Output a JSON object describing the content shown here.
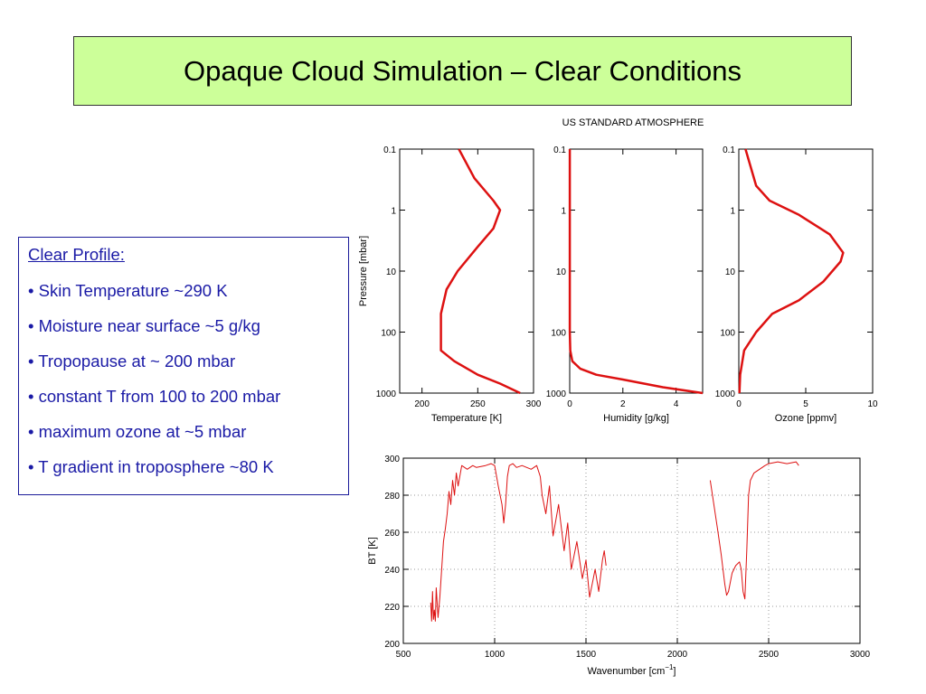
{
  "slide": {
    "title": "Opaque Cloud Simulation – Clear Conditions",
    "profile": {
      "heading": "Clear Profile:",
      "bullets": [
        "• Skin Temperature ~290 K",
        "• Moisture near surface ~5 g/kg",
        "• Tropopause at ~ 200 mbar",
        "• constant T from 100 to 200 mbar",
        "• maximum ozone at ~5 mbar",
        "• T gradient in troposphere ~80 K"
      ]
    }
  },
  "colors": {
    "title_bg": "#ccff99",
    "text_blue": "#1a1aa6",
    "line_red": "#dd1111"
  },
  "chart_data": [
    {
      "type": "line",
      "title": "US STANDARD ATMOSPHERE",
      "xlabel": "Temperature [K]",
      "ylabel": "Pressure [mbar]",
      "xlim": [
        180,
        300
      ],
      "ylim": [
        1000,
        0.1
      ],
      "yscale": "log",
      "xticks": [
        200,
        250,
        300
      ],
      "yticks": [
        0.1,
        1,
        10,
        100,
        1000
      ],
      "series": [
        {
          "x": [
            233,
            247,
            264,
            270,
            264,
            250,
            232,
            222,
            217,
            217,
            217,
            229,
            250,
            270,
            288
          ],
          "y": [
            0.1,
            0.3,
            0.7,
            1,
            2,
            4,
            10,
            20,
            50,
            100,
            200,
            300,
            500,
            700,
            1000
          ]
        }
      ]
    },
    {
      "type": "line",
      "xlabel": "Humidity [g/kg]",
      "xlim": [
        0,
        5
      ],
      "ylim": [
        1000,
        0.1
      ],
      "yscale": "log",
      "xticks": [
        0,
        2,
        4
      ],
      "yticks": [
        0.1,
        1,
        10,
        100,
        1000
      ],
      "series": [
        {
          "x": [
            0.003,
            0.003,
            0.003,
            0.005,
            0.02,
            0.1,
            0.4,
            1,
            2,
            3.5,
            5
          ],
          "y": [
            0.1,
            1,
            10,
            100,
            200,
            300,
            400,
            500,
            600,
            800,
            1000
          ]
        }
      ]
    },
    {
      "type": "line",
      "xlabel": "Ozone [ppmv]",
      "xlim": [
        0,
        10
      ],
      "ylim": [
        1000,
        0.1
      ],
      "yscale": "log",
      "xticks": [
        0,
        5,
        10
      ],
      "yticks": [
        0.1,
        1,
        10,
        100,
        1000
      ],
      "series": [
        {
          "x": [
            0.5,
            1.3,
            2.3,
            4.5,
            6.8,
            7.8,
            7.6,
            6.3,
            4.5,
            2.5,
            1.3,
            0.4,
            0.1,
            0.05
          ],
          "y": [
            0.1,
            0.4,
            0.7,
            1.2,
            2.5,
            5,
            7,
            15,
            30,
            50,
            100,
            200,
            500,
            1000
          ]
        }
      ]
    },
    {
      "type": "line",
      "xlabel": "Wavenumber [cm⁻¹]",
      "ylabel": "BT [K]",
      "xlim": [
        500,
        3000
      ],
      "ylim": [
        200,
        300
      ],
      "xticks": [
        500,
        1000,
        1500,
        2000,
        2500,
        3000
      ],
      "yticks": [
        200,
        220,
        240,
        260,
        280,
        300
      ],
      "grid": true,
      "series": [
        {
          "x": [
            650,
            655,
            660,
            665,
            670,
            675,
            680,
            690,
            700,
            710,
            720,
            730,
            740,
            750,
            760,
            770,
            780,
            790,
            800,
            820,
            850,
            880,
            900,
            950,
            980,
            1000,
            1020,
            1040,
            1050,
            1060,
            1070,
            1080,
            1100,
            1120,
            1150,
            1200,
            1230,
            1250,
            1260,
            1280,
            1300,
            1320,
            1350,
            1380,
            1400,
            1420,
            1450,
            1480,
            1500,
            1520,
            1550,
            1570,
            1590,
            1600,
            1610
          ],
          "y": [
            222,
            212,
            228,
            213,
            218,
            212,
            230,
            214,
            225,
            240,
            255,
            262,
            270,
            282,
            275,
            288,
            280,
            292,
            285,
            296,
            294,
            296,
            295,
            296,
            297,
            296,
            285,
            275,
            265,
            275,
            290,
            296,
            297,
            295,
            296,
            294,
            296,
            290,
            280,
            270,
            285,
            258,
            275,
            250,
            265,
            240,
            255,
            235,
            245,
            225,
            240,
            228,
            245,
            250,
            242
          ]
        },
        {
          "x": [
            2180,
            2200,
            2220,
            2240,
            2250,
            2260,
            2270,
            2280,
            2300,
            2320,
            2340,
            2350,
            2360,
            2370,
            2380,
            2390,
            2400,
            2420,
            2450,
            2480,
            2500,
            2550,
            2600,
            2650,
            2665
          ],
          "y": [
            288,
            275,
            262,
            248,
            240,
            232,
            226,
            228,
            238,
            242,
            244,
            240,
            228,
            224,
            250,
            280,
            288,
            292,
            294,
            296,
            297,
            298,
            297,
            298,
            296
          ]
        }
      ]
    }
  ]
}
